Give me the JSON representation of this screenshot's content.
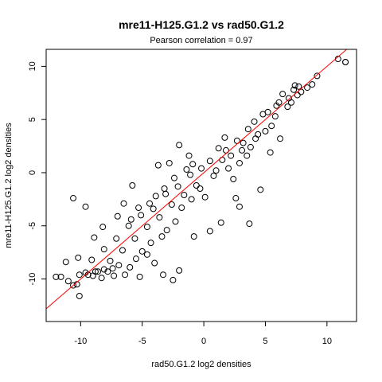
{
  "chart_data": {
    "type": "scatter",
    "title": "mre11-H125.G1.2 vs rad50.G1.2",
    "subtitle": "Pearson correlation =  0.97",
    "xlabel": "rad50.G1.2 log2 densities",
    "ylabel": "mre11-H125.G1.2 log2 densities",
    "xlim": [
      -12.8,
      12.4
    ],
    "ylim": [
      -14.0,
      11.6
    ],
    "x_ticks": [
      -10,
      -5,
      0,
      5,
      10
    ],
    "x_tick_labels": [
      "-10",
      "-5",
      "0",
      "5",
      "10"
    ],
    "y_ticks": [
      -10,
      -5,
      0,
      5,
      10
    ],
    "y_tick_labels": [
      "-10",
      "-5",
      "0",
      "5",
      "10"
    ],
    "marker": "open-circle",
    "point_color": "#000000",
    "fit_line": {
      "slope": 1.0,
      "intercept": 0.0,
      "color": "#ff0000"
    },
    "grid": false,
    "legend": "none",
    "points": [
      [
        11.5,
        10.4
      ],
      [
        10.9,
        10.7
      ],
      [
        11.5,
        10.4
      ],
      [
        9.2,
        9.1
      ],
      [
        8.8,
        8.3
      ],
      [
        8.4,
        8.0
      ],
      [
        7.9,
        7.6
      ],
      [
        7.6,
        7.3
      ],
      [
        7.4,
        8.2
      ],
      [
        7.1,
        6.6
      ],
      [
        6.8,
        6.2
      ],
      [
        6.1,
        6.6
      ],
      [
        5.8,
        5.3
      ],
      [
        5.5,
        4.4
      ],
      [
        5.0,
        3.9
      ],
      [
        4.8,
        5.5
      ],
      [
        4.2,
        3.2
      ],
      [
        3.8,
        2.4
      ],
      [
        3.5,
        1.6
      ],
      [
        3.1,
        2.1
      ],
      [
        2.9,
        0.9
      ],
      [
        2.4,
        -0.6
      ],
      [
        2.0,
        0.4
      ],
      [
        1.8,
        2.1
      ],
      [
        1.2,
        2.3
      ],
      [
        0.8,
        -0.3
      ],
      [
        0.5,
        1.1
      ],
      [
        -0.2,
        0.4
      ],
      [
        -0.6,
        -1.2
      ],
      [
        -1.1,
        -0.2
      ],
      [
        -1.6,
        -2.1
      ],
      [
        -2.1,
        -1.3
      ],
      [
        -2.6,
        -3.0
      ],
      [
        -3.1,
        -2.0
      ],
      [
        -3.6,
        -4.2
      ],
      [
        -4.1,
        -3.4
      ],
      [
        -4.6,
        -5.1
      ],
      [
        -5.1,
        -4.0
      ],
      [
        -5.6,
        -6.2
      ],
      [
        -6.1,
        -5.0
      ],
      [
        -6.6,
        -7.3
      ],
      [
        -7.1,
        -6.2
      ],
      [
        -7.6,
        -8.3
      ],
      [
        -8.1,
        -7.2
      ],
      [
        -8.6,
        -9.3
      ],
      [
        -9.1,
        -8.2
      ],
      [
        -9.6,
        -9.4
      ],
      [
        -10.1,
        -9.6
      ],
      [
        -10.6,
        -10.6
      ],
      [
        -11.6,
        -9.8
      ],
      [
        -12.0,
        -9.8
      ],
      [
        -11.2,
        -8.4
      ],
      [
        -10.2,
        -8.0
      ],
      [
        -10.6,
        -2.4
      ],
      [
        -9.6,
        -3.2
      ],
      [
        -8.9,
        -6.1
      ],
      [
        -8.2,
        -5.1
      ],
      [
        -3.7,
        0.7
      ],
      [
        -2.0,
        2.6
      ],
      [
        -1.2,
        1.6
      ],
      [
        1.7,
        3.3
      ],
      [
        2.9,
        -3.2
      ],
      [
        3.7,
        -4.8
      ],
      [
        4.6,
        -1.6
      ],
      [
        5.4,
        1.9
      ],
      [
        6.2,
        3.2
      ],
      [
        -4.6,
        -7.7
      ],
      [
        -3.3,
        -9.6
      ],
      [
        -2.5,
        -10.1
      ],
      [
        -2.0,
        -9.2
      ],
      [
        -5.2,
        -9.8
      ],
      [
        -6.4,
        -9.6
      ],
      [
        -7.3,
        -9.7
      ],
      [
        -8.3,
        -9.9
      ],
      [
        -4.0,
        -8.5
      ],
      [
        0.1,
        -2.3
      ],
      [
        1.4,
        -4.7
      ],
      [
        2.6,
        -2.4
      ],
      [
        -0.8,
        -6.0
      ],
      [
        0.5,
        -5.5
      ],
      [
        -2.8,
        0.9
      ],
      [
        -5.8,
        -1.2
      ],
      [
        -6.5,
        -2.9
      ],
      [
        -7.0,
        -4.1
      ],
      [
        -8.8,
        -9.3
      ],
      [
        -9.0,
        -9.7
      ],
      [
        -9.4,
        -9.6
      ],
      [
        -10.1,
        -11.6
      ],
      [
        -10.3,
        -10.5
      ],
      [
        -11.0,
        -10.2
      ],
      [
        3.2,
        2.8
      ],
      [
        3.6,
        4.1
      ],
      [
        4.1,
        4.8
      ],
      [
        4.4,
        3.6
      ],
      [
        5.2,
        5.7
      ],
      [
        5.9,
        6.3
      ],
      [
        6.4,
        7.4
      ],
      [
        6.9,
        7.0
      ],
      [
        7.3,
        7.8
      ],
      [
        7.7,
        8.1
      ],
      [
        1.0,
        0.2
      ],
      [
        1.5,
        1.2
      ],
      [
        2.2,
        1.6
      ],
      [
        2.7,
        3.0
      ],
      [
        -0.3,
        -1.5
      ],
      [
        -1.0,
        -2.5
      ],
      [
        -1.8,
        -3.3
      ],
      [
        -2.3,
        -4.6
      ],
      [
        -3.0,
        -5.4
      ],
      [
        -3.4,
        -6.0
      ],
      [
        -4.3,
        -6.6
      ],
      [
        -5.0,
        -7.4
      ],
      [
        -5.5,
        -8.1
      ],
      [
        -6.0,
        -8.9
      ],
      [
        -6.9,
        -8.7
      ],
      [
        -7.4,
        -9.0
      ],
      [
        -7.8,
        -9.3
      ],
      [
        -8.1,
        -9.1
      ],
      [
        -0.9,
        0.8
      ],
      [
        -1.4,
        0.3
      ],
      [
        -2.4,
        -0.5
      ],
      [
        -3.2,
        -1.5
      ],
      [
        -3.9,
        -2.2
      ],
      [
        -4.4,
        -2.9
      ],
      [
        -5.3,
        -3.3
      ],
      [
        -5.9,
        -4.4
      ]
    ]
  }
}
